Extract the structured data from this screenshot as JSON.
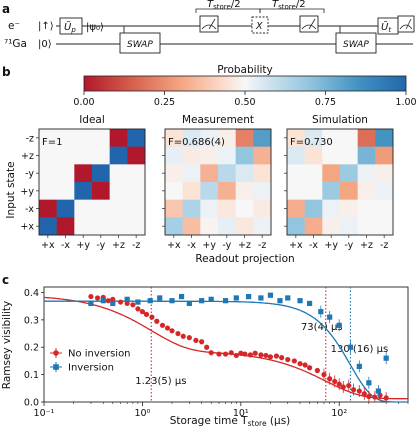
{
  "panel_a": {
    "label": "a",
    "qubit1_name": "e⁻",
    "qubit2_name": "⁷¹Ga",
    "ket_up": "|↑⟩",
    "ket_zero": "|0⟩",
    "prep_gate": "Ũ",
    "prep_gate_sub": "p",
    "psi0": "|ψ₀⟩",
    "swap_label": "SWAP",
    "t_store_half_1": "T",
    "t_store_half_1_sub": "store",
    "t_store_half_1_tail": "/2",
    "t_store_half_2": "T",
    "t_store_half_2_sub": "store",
    "t_store_half_2_tail": "/2",
    "x_gate": "X",
    "tomo_gate": "Ũ",
    "tomo_gate_sub": "t"
  },
  "panel_b": {
    "label": "b",
    "colorbar_title": "Probability",
    "colorbar_ticks": [
      "0.00",
      "0.25",
      "0.50",
      "0.75",
      "1.00"
    ],
    "ylabel": "Input state",
    "xlabel": "Readout projection",
    "row_labels": [
      "-z",
      "+z",
      "-y",
      "+y",
      "-x",
      "+x"
    ],
    "col_labels": [
      "+x",
      "-x",
      "+y",
      "-y",
      "+z",
      "-z"
    ],
    "matrices": [
      {
        "title": "Ideal",
        "fidelity": "F=1",
        "values": [
          [
            0.5,
            0.5,
            0.5,
            0.5,
            0.0,
            1.0
          ],
          [
            0.5,
            0.5,
            0.5,
            0.5,
            1.0,
            0.0
          ],
          [
            0.5,
            0.5,
            0.0,
            1.0,
            0.5,
            0.5
          ],
          [
            0.5,
            0.5,
            1.0,
            0.0,
            0.5,
            0.5
          ],
          [
            0.0,
            1.0,
            0.5,
            0.5,
            0.5,
            0.5
          ],
          [
            1.0,
            0.0,
            0.5,
            0.5,
            0.5,
            0.5
          ]
        ]
      },
      {
        "title": "Measurement",
        "fidelity": "F=0.686(4)",
        "values": [
          [
            0.45,
            0.55,
            0.52,
            0.48,
            0.22,
            0.82
          ],
          [
            0.53,
            0.47,
            0.48,
            0.52,
            0.7,
            0.33
          ],
          [
            0.48,
            0.52,
            0.33,
            0.62,
            0.55,
            0.45
          ],
          [
            0.5,
            0.45,
            0.62,
            0.33,
            0.48,
            0.52
          ],
          [
            0.38,
            0.64,
            0.52,
            0.46,
            0.5,
            0.47
          ],
          [
            0.66,
            0.36,
            0.49,
            0.53,
            0.46,
            0.52
          ]
        ]
      },
      {
        "title": "Simulation",
        "fidelity": "F=0.730",
        "values": [
          [
            0.45,
            0.55,
            0.5,
            0.5,
            0.18,
            0.85
          ],
          [
            0.55,
            0.45,
            0.5,
            0.5,
            0.75,
            0.28
          ],
          [
            0.5,
            0.5,
            0.3,
            0.68,
            0.52,
            0.48
          ],
          [
            0.5,
            0.5,
            0.68,
            0.3,
            0.48,
            0.52
          ],
          [
            0.32,
            0.7,
            0.52,
            0.48,
            0.5,
            0.5
          ],
          [
            0.7,
            0.32,
            0.48,
            0.52,
            0.5,
            0.5
          ]
        ]
      }
    ]
  },
  "chart_data": {
    "type": "scatter",
    "label": "c",
    "xlabel": "Storage time T",
    "xlabel_sub": "store",
    "xlabel_unit": " (μs)",
    "ylabel": "Ramsey visibility",
    "x_scale": "log",
    "xlim": [
      0.1,
      500
    ],
    "ylim": [
      0.0,
      0.42
    ],
    "x_ticks": [
      0.1,
      1,
      10,
      100
    ],
    "x_tick_labels": [
      "10⁻¹",
      "10⁰",
      "10¹",
      "10²"
    ],
    "y_ticks": [
      0.0,
      0.1,
      0.2,
      0.3,
      0.4
    ],
    "y_tick_labels": [
      "0.0",
      "0.1",
      "0.2",
      "0.3",
      "0.4"
    ],
    "legend_placement": "lower-left",
    "series": [
      {
        "name": "No inversion",
        "color": "#d62728",
        "marker": "circle",
        "x": [
          0.3,
          0.35,
          0.4,
          0.45,
          0.5,
          0.6,
          0.7,
          0.8,
          0.9,
          1.0,
          1.1,
          1.25,
          1.4,
          1.6,
          1.8,
          2.0,
          2.3,
          2.6,
          3.0,
          3.5,
          4.0,
          4.5,
          5.0,
          6.0,
          7.0,
          8.0,
          9.0,
          10,
          11,
          12.5,
          14,
          16,
          18,
          20,
          23,
          26,
          30,
          35,
          40,
          45,
          50,
          60,
          70,
          80,
          90,
          100,
          110,
          125,
          140,
          160,
          180,
          200,
          230,
          260,
          300
        ],
        "y": [
          0.385,
          0.38,
          0.382,
          0.37,
          0.375,
          0.365,
          0.36,
          0.355,
          0.34,
          0.33,
          0.32,
          0.31,
          0.295,
          0.28,
          0.27,
          0.26,
          0.25,
          0.24,
          0.235,
          0.225,
          0.22,
          0.2,
          0.18,
          0.175,
          0.175,
          0.18,
          0.17,
          0.178,
          0.175,
          0.172,
          0.178,
          0.172,
          0.17,
          0.165,
          0.168,
          0.162,
          0.155,
          0.15,
          0.14,
          0.135,
          0.125,
          0.115,
          0.1,
          0.085,
          0.075,
          0.065,
          0.055,
          0.06,
          0.045,
          0.04,
          0.03,
          0.02,
          0.018,
          0.025,
          0.015
        ]
      },
      {
        "name": "Inversion",
        "color": "#1f77b4",
        "marker": "square",
        "x": [
          0.3,
          0.4,
          0.5,
          0.7,
          0.9,
          1.2,
          1.5,
          2.0,
          2.5,
          3.0,
          4.0,
          5.0,
          7.0,
          9.0,
          12,
          16,
          20,
          25,
          30,
          40,
          50,
          65,
          80,
          100,
          130,
          160,
          200,
          250,
          300
        ],
        "y": [
          0.36,
          0.37,
          0.36,
          0.375,
          0.365,
          0.37,
          0.38,
          0.37,
          0.385,
          0.36,
          0.37,
          0.375,
          0.37,
          0.38,
          0.385,
          0.38,
          0.39,
          0.37,
          0.38,
          0.37,
          0.36,
          0.33,
          0.31,
          0.28,
          0.2,
          0.13,
          0.07,
          0.04,
          0.16
        ]
      }
    ],
    "fit_curves": [
      {
        "series": "No inversion",
        "color": "#d62728"
      },
      {
        "series": "Inversion",
        "color": "#1f77b4"
      }
    ],
    "annotations": [
      {
        "text": "1.23(5) μs",
        "x": 1.23,
        "color": "#d62728"
      },
      {
        "text": "73(4) μs",
        "x": 73,
        "color": "#d62728"
      },
      {
        "text": "130 (16) μs",
        "x": 130,
        "color": "#1f77b4"
      }
    ]
  }
}
